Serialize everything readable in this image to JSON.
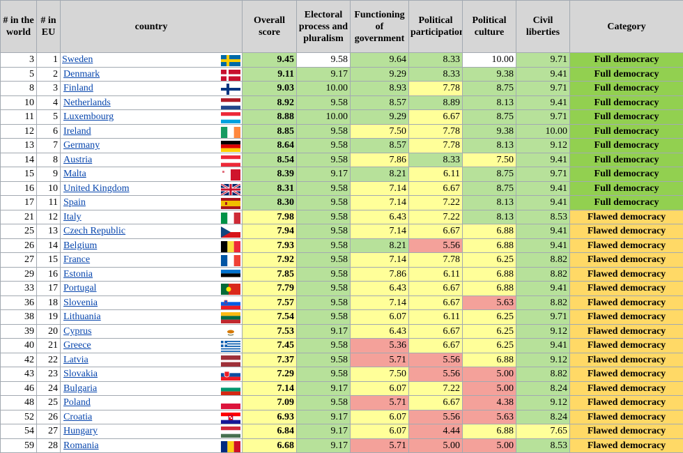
{
  "headers": {
    "world_rank": "# in the world",
    "eu_rank": "# in EU",
    "country": "country",
    "overall": "Overall score",
    "electoral": "Electoral process and pluralism",
    "functioning": "Functioning of government",
    "participation": "Political participation",
    "culture": "Political culture",
    "liberties": "Civil liberties",
    "category": "Category"
  },
  "colors": {
    "green": "#b7e19a",
    "full_democracy_green": "#92d050",
    "yellow": "#ffff99",
    "flawed_democracy_yellow": "#ffd966",
    "red": "#f4a19a",
    "link": "#0645ad"
  },
  "rows": [
    {
      "world": "3",
      "eu": "1",
      "country": "Sweden",
      "flag": "sweden-flag-icon",
      "overall": "9.45",
      "electoral": "9.58",
      "functioning": "9.64",
      "participation": "8.33",
      "culture": "10.00",
      "liberties": "9.71",
      "category": "Full democracy",
      "c": [
        "g",
        "w",
        "g",
        "g",
        "w",
        "g"
      ]
    },
    {
      "world": "5",
      "eu": "2",
      "country": "Denmark",
      "flag": "denmark-flag-icon",
      "overall": "9.11",
      "electoral": "9.17",
      "functioning": "9.29",
      "participation": "8.33",
      "culture": "9.38",
      "liberties": "9.41",
      "category": "Full democracy",
      "c": [
        "g",
        "g",
        "g",
        "g",
        "g",
        "g"
      ]
    },
    {
      "world": "8",
      "eu": "3",
      "country": "Finland",
      "flag": "finland-flag-icon",
      "overall": "9.03",
      "electoral": "10.00",
      "functioning": "8.93",
      "participation": "7.78",
      "culture": "8.75",
      "liberties": "9.71",
      "category": "Full democracy",
      "c": [
        "g",
        "g",
        "g",
        "y",
        "g",
        "g"
      ]
    },
    {
      "world": "10",
      "eu": "4",
      "country": "Netherlands",
      "flag": "netherlands-flag-icon",
      "overall": "8.92",
      "electoral": "9.58",
      "functioning": "8.57",
      "participation": "8.89",
      "culture": "8.13",
      "liberties": "9.41",
      "category": "Full democracy",
      "c": [
        "g",
        "g",
        "g",
        "g",
        "g",
        "g"
      ]
    },
    {
      "world": "11",
      "eu": "5",
      "country": "Luxembourg",
      "flag": "luxembourg-flag-icon",
      "overall": "8.88",
      "electoral": "10.00",
      "functioning": "9.29",
      "participation": "6.67",
      "culture": "8.75",
      "liberties": "9.71",
      "category": "Full democracy",
      "c": [
        "g",
        "g",
        "g",
        "y",
        "g",
        "g"
      ]
    },
    {
      "world": "12",
      "eu": "6",
      "country": "Ireland",
      "flag": "ireland-flag-icon",
      "overall": "8.85",
      "electoral": "9.58",
      "functioning": "7.50",
      "participation": "7.78",
      "culture": "9.38",
      "liberties": "10.00",
      "category": "Full democracy",
      "c": [
        "g",
        "g",
        "y",
        "y",
        "g",
        "g"
      ]
    },
    {
      "world": "13",
      "eu": "7",
      "country": "Germany",
      "flag": "germany-flag-icon",
      "overall": "8.64",
      "electoral": "9.58",
      "functioning": "8.57",
      "participation": "7.78",
      "culture": "8.13",
      "liberties": "9.12",
      "category": "Full democracy",
      "c": [
        "g",
        "g",
        "g",
        "y",
        "g",
        "g"
      ]
    },
    {
      "world": "14",
      "eu": "8",
      "country": "Austria",
      "flag": "austria-flag-icon",
      "overall": "8.54",
      "electoral": "9.58",
      "functioning": "7.86",
      "participation": "8.33",
      "culture": "7.50",
      "liberties": "9.41",
      "category": "Full democracy",
      "c": [
        "g",
        "g",
        "y",
        "g",
        "y",
        "g"
      ]
    },
    {
      "world": "15",
      "eu": "9",
      "country": "Malta",
      "flag": "malta-flag-icon",
      "overall": "8.39",
      "electoral": "9.17",
      "functioning": "8.21",
      "participation": "6.11",
      "culture": "8.75",
      "liberties": "9.71",
      "category": "Full democracy",
      "c": [
        "g",
        "g",
        "g",
        "y",
        "g",
        "g"
      ]
    },
    {
      "world": "16",
      "eu": "10",
      "country": "United Kingdom",
      "flag": "united-kingdom-flag-icon",
      "overall": "8.31",
      "electoral": "9.58",
      "functioning": "7.14",
      "participation": "6.67",
      "culture": "8.75",
      "liberties": "9.41",
      "category": "Full democracy",
      "c": [
        "g",
        "g",
        "y",
        "y",
        "g",
        "g"
      ]
    },
    {
      "world": "17",
      "eu": "11",
      "country": "Spain",
      "flag": "spain-flag-icon",
      "overall": "8.30",
      "electoral": "9.58",
      "functioning": "7.14",
      "participation": "7.22",
      "culture": "8.13",
      "liberties": "9.41",
      "category": "Full democracy",
      "c": [
        "g",
        "g",
        "y",
        "y",
        "g",
        "g"
      ]
    },
    {
      "world": "21",
      "eu": "12",
      "country": "Italy",
      "flag": "italy-flag-icon",
      "overall": "7.98",
      "electoral": "9.58",
      "functioning": "6.43",
      "participation": "7.22",
      "culture": "8.13",
      "liberties": "8.53",
      "category": "Flawed democracy",
      "c": [
        "y",
        "g",
        "y",
        "y",
        "g",
        "g"
      ]
    },
    {
      "world": "25",
      "eu": "13",
      "country": "Czech Republic",
      "flag": "czech-republic-flag-icon",
      "overall": "7.94",
      "electoral": "9.58",
      "functioning": "7.14",
      "participation": "6.67",
      "culture": "6.88",
      "liberties": "9.41",
      "category": "Flawed democracy",
      "c": [
        "y",
        "g",
        "y",
        "y",
        "y",
        "g"
      ]
    },
    {
      "world": "26",
      "eu": "14",
      "country": "Belgium",
      "flag": "belgium-flag-icon",
      "overall": "7.93",
      "electoral": "9.58",
      "functioning": "8.21",
      "participation": "5.56",
      "culture": "6.88",
      "liberties": "9.41",
      "category": "Flawed democracy",
      "c": [
        "y",
        "g",
        "g",
        "r",
        "y",
        "g"
      ]
    },
    {
      "world": "27",
      "eu": "15",
      "country": "France",
      "flag": "france-flag-icon",
      "overall": "7.92",
      "electoral": "9.58",
      "functioning": "7.14",
      "participation": "7.78",
      "culture": "6.25",
      "liberties": "8.82",
      "category": "Flawed democracy",
      "c": [
        "y",
        "g",
        "y",
        "y",
        "y",
        "g"
      ]
    },
    {
      "world": "29",
      "eu": "16",
      "country": "Estonia",
      "flag": "estonia-flag-icon",
      "overall": "7.85",
      "electoral": "9.58",
      "functioning": "7.86",
      "participation": "6.11",
      "culture": "6.88",
      "liberties": "8.82",
      "category": "Flawed democracy",
      "c": [
        "y",
        "g",
        "y",
        "y",
        "y",
        "g"
      ]
    },
    {
      "world": "33",
      "eu": "17",
      "country": "Portugal",
      "flag": "portugal-flag-icon",
      "overall": "7.79",
      "electoral": "9.58",
      "functioning": "6.43",
      "participation": "6.67",
      "culture": "6.88",
      "liberties": "9.41",
      "category": "Flawed democracy",
      "c": [
        "y",
        "g",
        "y",
        "y",
        "y",
        "g"
      ]
    },
    {
      "world": "36",
      "eu": "18",
      "country": "Slovenia",
      "flag": "slovenia-flag-icon",
      "overall": "7.57",
      "electoral": "9.58",
      "functioning": "7.14",
      "participation": "6.67",
      "culture": "5.63",
      "liberties": "8.82",
      "category": "Flawed democracy",
      "c": [
        "y",
        "g",
        "y",
        "y",
        "r",
        "g"
      ]
    },
    {
      "world": "38",
      "eu": "19",
      "country": "Lithuania",
      "flag": "lithuania-flag-icon",
      "overall": "7.54",
      "electoral": "9.58",
      "functioning": "6.07",
      "participation": "6.11",
      "culture": "6.25",
      "liberties": "9.71",
      "category": "Flawed democracy",
      "c": [
        "y",
        "g",
        "y",
        "y",
        "y",
        "g"
      ]
    },
    {
      "world": "39",
      "eu": "20",
      "country": "Cyprus",
      "flag": "cyprus-flag-icon",
      "overall": "7.53",
      "electoral": "9.17",
      "functioning": "6.43",
      "participation": "6.67",
      "culture": "6.25",
      "liberties": "9.12",
      "category": "Flawed democracy",
      "c": [
        "y",
        "g",
        "y",
        "y",
        "y",
        "g"
      ]
    },
    {
      "world": "40",
      "eu": "21",
      "country": "Greece",
      "flag": "greece-flag-icon",
      "overall": "7.45",
      "electoral": "9.58",
      "functioning": "5.36",
      "participation": "6.67",
      "culture": "6.25",
      "liberties": "9.41",
      "category": "Flawed democracy",
      "c": [
        "y",
        "g",
        "r",
        "y",
        "y",
        "g"
      ]
    },
    {
      "world": "42",
      "eu": "22",
      "country": "Latvia",
      "flag": "latvia-flag-icon",
      "overall": "7.37",
      "electoral": "9.58",
      "functioning": "5.71",
      "participation": "5.56",
      "culture": "6.88",
      "liberties": "9.12",
      "category": "Flawed democracy",
      "c": [
        "y",
        "g",
        "r",
        "r",
        "y",
        "g"
      ]
    },
    {
      "world": "43",
      "eu": "23",
      "country": "Slovakia",
      "flag": "slovakia-flag-icon",
      "overall": "7.29",
      "electoral": "9.58",
      "functioning": "7.50",
      "participation": "5.56",
      "culture": "5.00",
      "liberties": "8.82",
      "category": "Flawed democracy",
      "c": [
        "y",
        "g",
        "y",
        "r",
        "r",
        "g"
      ]
    },
    {
      "world": "46",
      "eu": "24",
      "country": "Bulgaria",
      "flag": "bulgaria-flag-icon",
      "overall": "7.14",
      "electoral": "9.17",
      "functioning": "6.07",
      "participation": "7.22",
      "culture": "5.00",
      "liberties": "8.24",
      "category": "Flawed democracy",
      "c": [
        "y",
        "g",
        "y",
        "y",
        "r",
        "g"
      ]
    },
    {
      "world": "48",
      "eu": "25",
      "country": "Poland",
      "flag": "poland-flag-icon",
      "overall": "7.09",
      "electoral": "9.58",
      "functioning": "5.71",
      "participation": "6.67",
      "culture": "4.38",
      "liberties": "9.12",
      "category": "Flawed democracy",
      "c": [
        "y",
        "g",
        "r",
        "y",
        "r",
        "g"
      ]
    },
    {
      "world": "52",
      "eu": "26",
      "country": "Croatia",
      "flag": "croatia-flag-icon",
      "overall": "6.93",
      "electoral": "9.17",
      "functioning": "6.07",
      "participation": "5.56",
      "culture": "5.63",
      "liberties": "8.24",
      "category": "Flawed democracy",
      "c": [
        "y",
        "g",
        "y",
        "r",
        "r",
        "g"
      ]
    },
    {
      "world": "54",
      "eu": "27",
      "country": "Hungary",
      "flag": "hungary-flag-icon",
      "overall": "6.84",
      "electoral": "9.17",
      "functioning": "6.07",
      "participation": "4.44",
      "culture": "6.88",
      "liberties": "7.65",
      "category": "Flawed democracy",
      "c": [
        "y",
        "g",
        "y",
        "r",
        "y",
        "y"
      ]
    },
    {
      "world": "59",
      "eu": "28",
      "country": "Romania",
      "flag": "romania-flag-icon",
      "overall": "6.68",
      "electoral": "9.17",
      "functioning": "5.71",
      "participation": "5.00",
      "culture": "5.00",
      "liberties": "8.53",
      "category": "Flawed democracy",
      "c": [
        "y",
        "g",
        "r",
        "r",
        "r",
        "g"
      ]
    }
  ]
}
